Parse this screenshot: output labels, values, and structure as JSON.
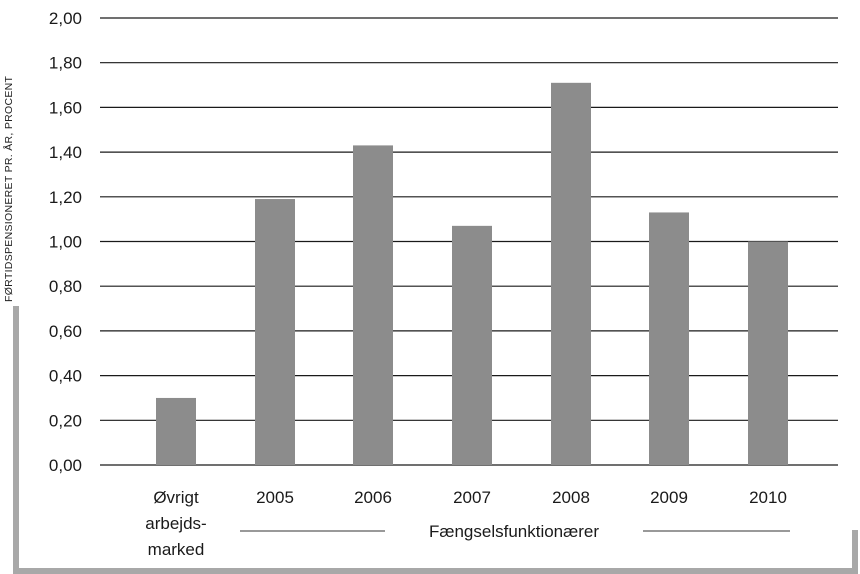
{
  "chart_data": {
    "type": "bar",
    "title": "",
    "ylabel": "FØRTIDSPENSIONERET PR. ÅR, PROCENT",
    "xlabel": "",
    "ylim": [
      0,
      2
    ],
    "yticks": [
      "0,00",
      "0,20",
      "0,40",
      "0,60",
      "0,80",
      "1,00",
      "1,20",
      "1,40",
      "1,60",
      "1,80",
      "2,00"
    ],
    "categories": [
      [
        "Øvrigt",
        "arbejds-",
        "marked"
      ],
      [
        "2005"
      ],
      [
        "2006"
      ],
      [
        "2007"
      ],
      [
        "2008"
      ],
      [
        "2009"
      ],
      [
        "2010"
      ]
    ],
    "values": [
      0.3,
      1.19,
      1.43,
      1.07,
      1.71,
      1.13,
      1.0
    ],
    "group_label": "Fængselsfunktionærer",
    "grid": true,
    "bar_color": "#8c8c8c",
    "grid_color": "#1a1a1a"
  }
}
